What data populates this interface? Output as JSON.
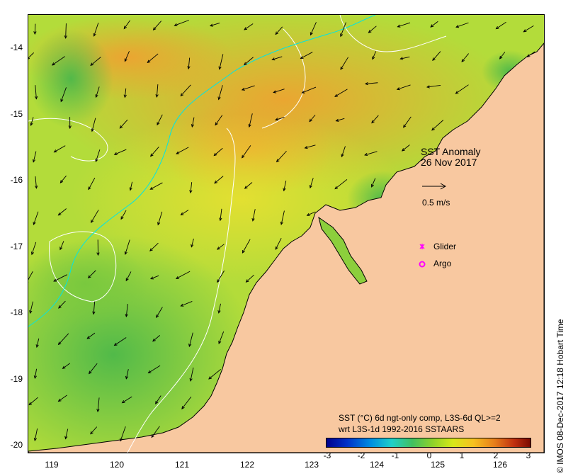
{
  "map": {
    "lat_ticks": [
      "-14",
      "-15",
      "-16",
      "-17",
      "-18",
      "-19",
      "-20"
    ],
    "lon_ticks": [
      "119",
      "120",
      "121",
      "122",
      "123",
      "124",
      "125",
      "126"
    ],
    "land_color": "#f8c8a0",
    "coastline_color": "#000000",
    "ocean_base_color": "#b3dc3a"
  },
  "annotation": {
    "title": "SST Anomaly",
    "date": "26 Nov 2017",
    "vector_scale_label": "0.5 m/s"
  },
  "legend": {
    "glider_label": "Glider",
    "glider_color": "#ff00ff",
    "argo_label": "Argo",
    "argo_color": "#ff00ff"
  },
  "colorbar": {
    "line1": "SST (°C) 6d ngt-only comp, L3S-6d QL>=2",
    "line2": "wrt L3S-1d 1992-2016 SSTAARS",
    "ticks": [
      "-3",
      "-2",
      "-1",
      "0",
      "1",
      "2",
      "3"
    ],
    "range": [
      -3,
      3
    ]
  },
  "credit": "© IMOS 08-Dec-2017 12:18 Hobart Time"
}
